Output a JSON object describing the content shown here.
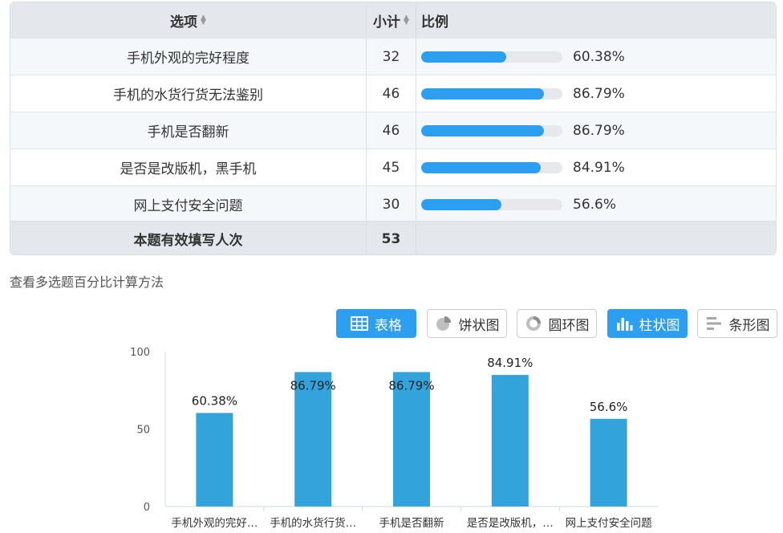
{
  "table": {
    "headers": {
      "option": "选项",
      "count": "小计",
      "ratio": "比例"
    },
    "rows": [
      {
        "option": "手机外观的完好程度",
        "count": "32",
        "percent": "60.38%",
        "value": 60.38
      },
      {
        "option": "手机的水货行货无法鉴别",
        "count": "46",
        "percent": "86.79%",
        "value": 86.79
      },
      {
        "option": "手机是否翻新",
        "count": "46",
        "percent": "86.79%",
        "value": 86.79
      },
      {
        "option": "是否是改版机，黑手机",
        "count": "45",
        "percent": "84.91%",
        "value": 84.91
      },
      {
        "option": "网上支付安全问题",
        "count": "30",
        "percent": "56.6%",
        "value": 56.6
      }
    ],
    "footer": {
      "label": "本题有效填写人次",
      "count": "53"
    }
  },
  "method_link": "查看多选题百分比计算方法",
  "toolbar": {
    "table": "表格",
    "pie": "饼状图",
    "ring": "圆环图",
    "column": "柱状图",
    "bar": "条形图"
  },
  "colors": {
    "accent": "#2d9ff0",
    "bar": "#33a3dc",
    "track": "#e6e8eb"
  },
  "chart_data": {
    "type": "bar",
    "categories": [
      "手机外观的完好程度",
      "手机的水货行货无法鉴别",
      "手机是否翻新",
      "是否是改版机，黑手机",
      "网上支付安全问题"
    ],
    "tick_labels": [
      "手机外观的完好…",
      "手机的水货行货…",
      "手机是否翻新",
      "是否是改版机，…",
      "网上支付安全问题"
    ],
    "values": [
      60.38,
      86.79,
      86.79,
      84.91,
      56.6
    ],
    "data_labels": [
      "60.38%",
      "86.79%",
      "86.79%",
      "84.91%",
      "56.6%"
    ],
    "y_ticks": [
      "0",
      "50",
      "100"
    ],
    "ylim": [
      0,
      100
    ],
    "grid": false,
    "title": "",
    "xlabel": "",
    "ylabel": ""
  }
}
